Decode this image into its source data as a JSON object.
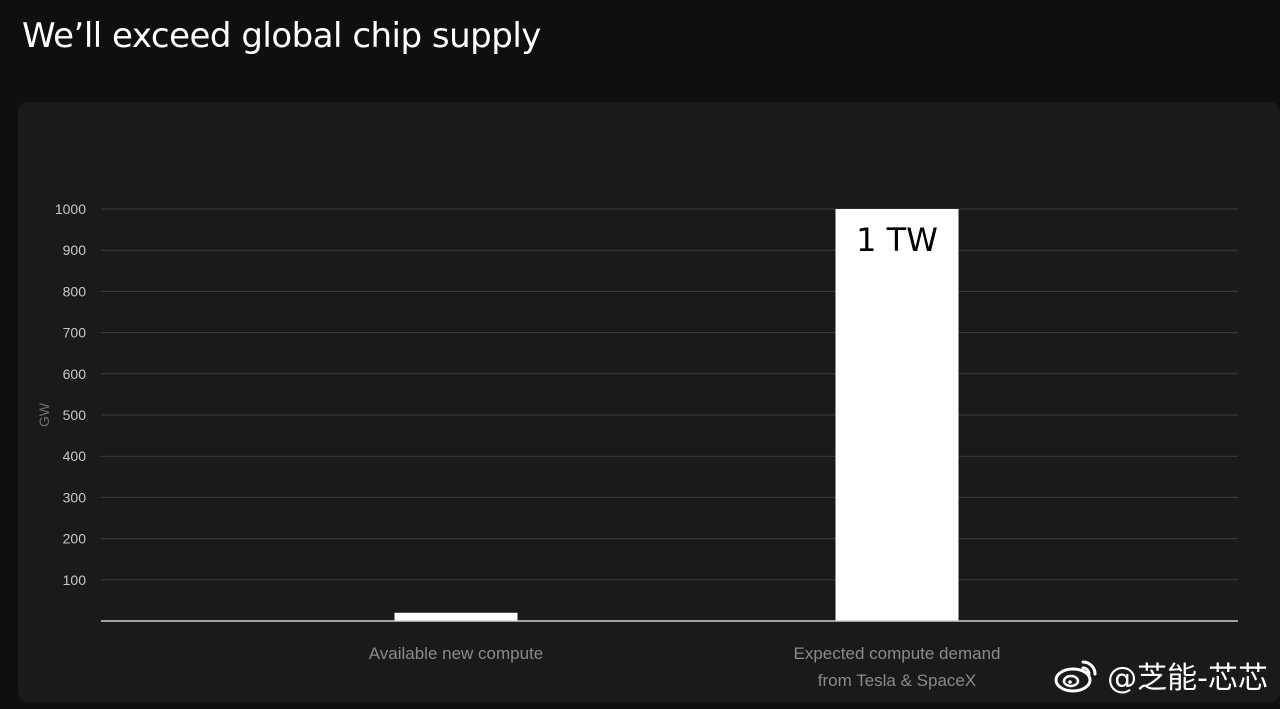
{
  "page": {
    "title": "We’ll exceed global chip supply"
  },
  "watermark": {
    "icon": "weibo-icon",
    "text": "@芝能-芯芯"
  },
  "colors": {
    "background": "#0f0f0f",
    "panel": "#1a1a1a",
    "bar": "#ffffff",
    "grid": "#3c3c3c",
    "axis_text": "#c8c8c8",
    "category_text": "#8a8a8a"
  },
  "chart_data": {
    "type": "bar",
    "title": "",
    "xlabel": "",
    "ylabel": "GW",
    "ylim": [
      0,
      1000
    ],
    "yticks": [
      100,
      200,
      300,
      400,
      500,
      600,
      700,
      800,
      900,
      1000
    ],
    "grid": true,
    "categories": [
      [
        "Available new compute"
      ],
      [
        "Expected compute demand",
        "from Tesla & SpaceX"
      ]
    ],
    "values": [
      20,
      1000
    ],
    "data_labels": [
      "",
      "1 TW"
    ]
  }
}
